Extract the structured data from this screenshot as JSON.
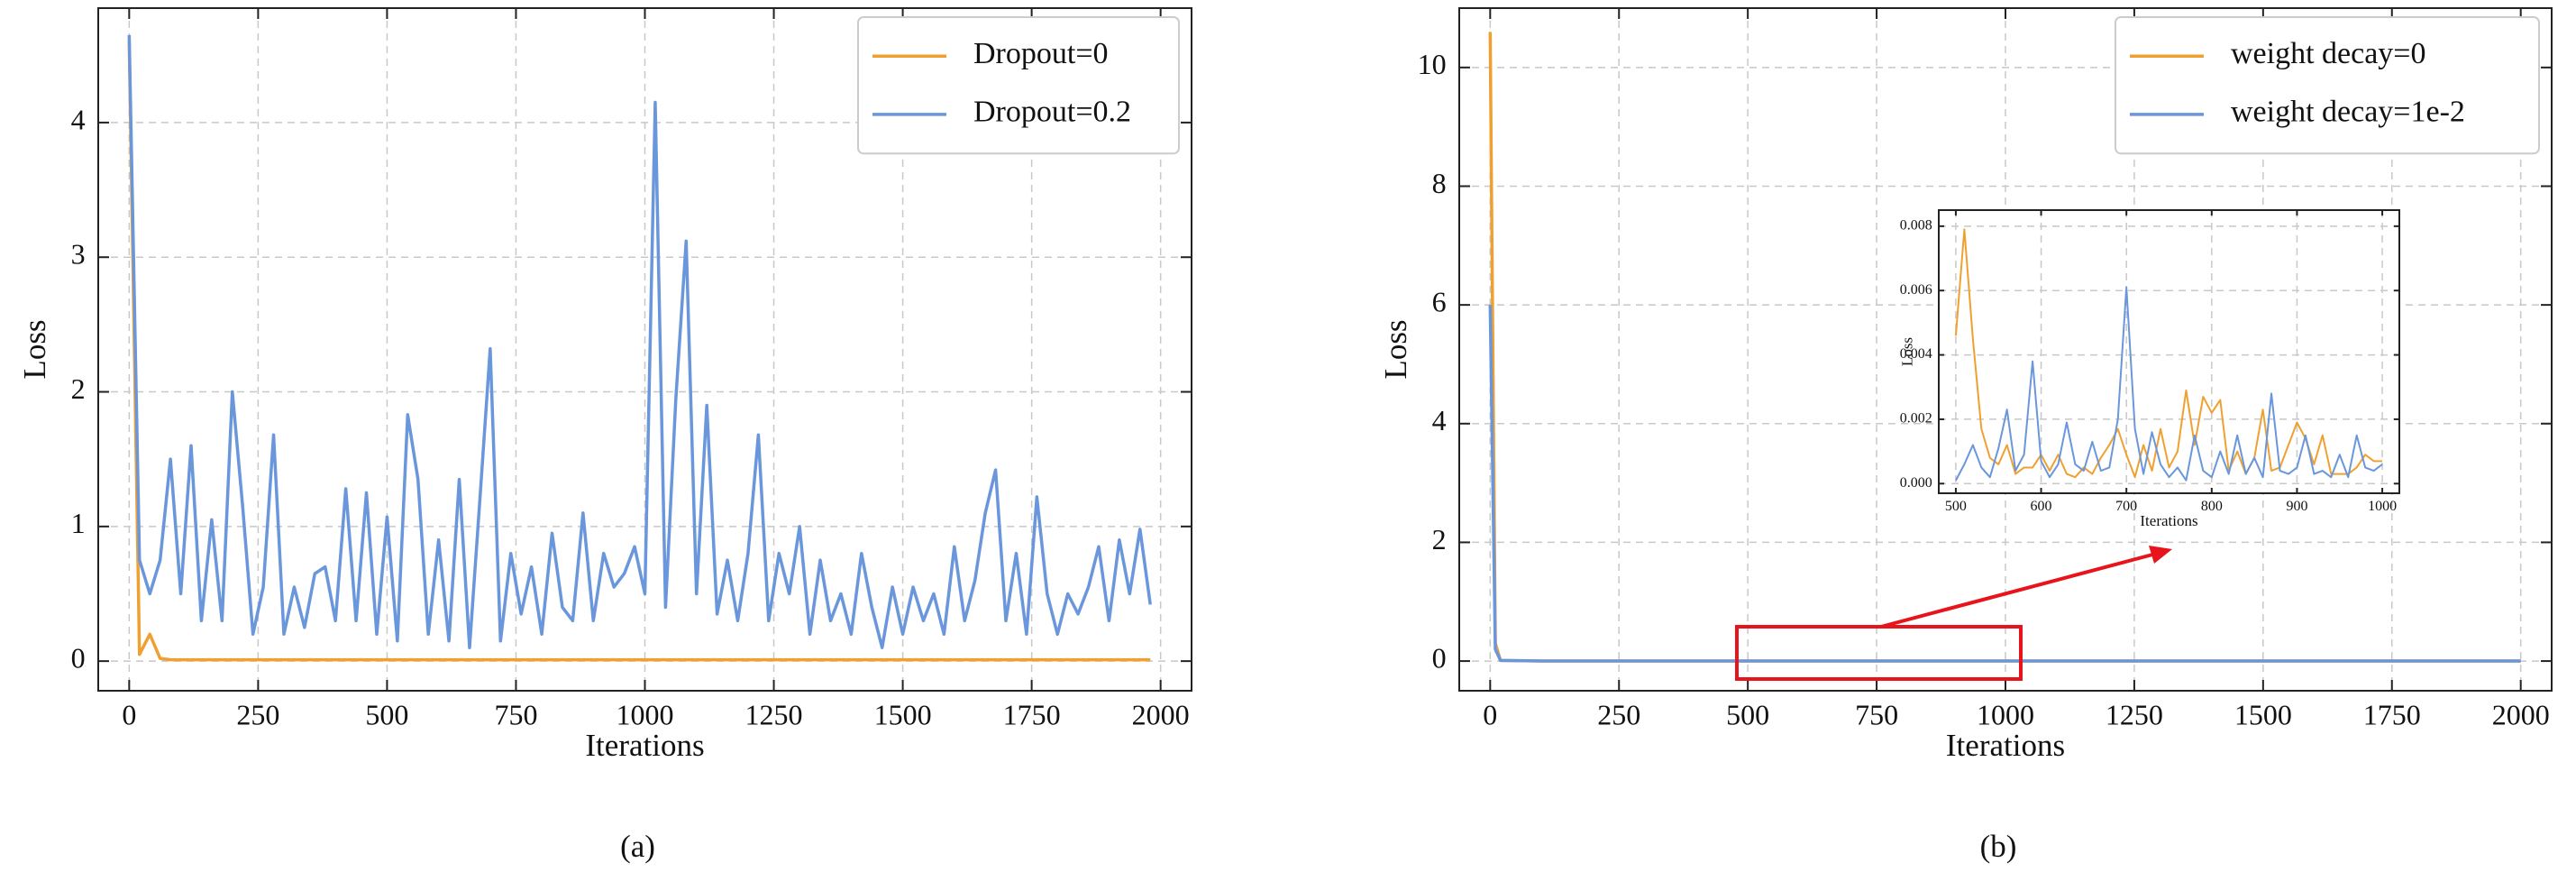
{
  "chart_data": [
    {
      "type": "line",
      "xlabel": "Iterations",
      "ylabel": "Loss",
      "caption": "(a)",
      "xlim": [
        -60,
        2060
      ],
      "ylim": [
        -0.22,
        4.85
      ],
      "xticks": [
        0,
        250,
        500,
        750,
        1000,
        1250,
        1500,
        1750,
        2000
      ],
      "yticks": [
        0,
        1,
        2,
        3,
        4
      ],
      "grid": true,
      "legend": "upper right",
      "x": [
        0,
        20,
        40,
        60,
        80,
        100,
        120,
        140,
        160,
        180,
        200,
        220,
        240,
        260,
        280,
        300,
        320,
        340,
        360,
        380,
        400,
        420,
        440,
        460,
        480,
        500,
        520,
        540,
        560,
        580,
        600,
        620,
        640,
        660,
        680,
        700,
        720,
        740,
        760,
        780,
        800,
        820,
        840,
        860,
        880,
        900,
        920,
        940,
        960,
        980,
        1000,
        1020,
        1040,
        1060,
        1080,
        1100,
        1120,
        1140,
        1160,
        1180,
        1200,
        1220,
        1240,
        1260,
        1280,
        1300,
        1320,
        1340,
        1360,
        1380,
        1400,
        1420,
        1440,
        1460,
        1480,
        1500,
        1520,
        1540,
        1560,
        1580,
        1600,
        1620,
        1640,
        1660,
        1680,
        1700,
        1720,
        1740,
        1760,
        1780,
        1800,
        1820,
        1840,
        1860,
        1880,
        1900,
        1920,
        1940,
        1960,
        1980
      ],
      "series": [
        {
          "name": "Dropout=0",
          "color": "#f0a030",
          "values": [
            4.6,
            0.05,
            0.2,
            0.02,
            0.01,
            0.01,
            0.01,
            0.01,
            0.01,
            0.01,
            0.01,
            0.01,
            0.01,
            0.01,
            0.01,
            0.01,
            0.01,
            0.01,
            0.01,
            0.01,
            0.01,
            0.01,
            0.01,
            0.01,
            0.01,
            0.01,
            0.01,
            0.01,
            0.01,
            0.01,
            0.01,
            0.01,
            0.01,
            0.01,
            0.01,
            0.01,
            0.01,
            0.01,
            0.01,
            0.01,
            0.01,
            0.01,
            0.01,
            0.01,
            0.01,
            0.01,
            0.01,
            0.01,
            0.01,
            0.01,
            0.01,
            0.01,
            0.01,
            0.01,
            0.01,
            0.01,
            0.01,
            0.01,
            0.01,
            0.01,
            0.01,
            0.01,
            0.01,
            0.01,
            0.01,
            0.01,
            0.01,
            0.01,
            0.01,
            0.01,
            0.01,
            0.01,
            0.01,
            0.01,
            0.01,
            0.01,
            0.01,
            0.01,
            0.01,
            0.01,
            0.01,
            0.01,
            0.01,
            0.01,
            0.01,
            0.01,
            0.01,
            0.01,
            0.01,
            0.01,
            0.01,
            0.01,
            0.01,
            0.01,
            0.01,
            0.01,
            0.01,
            0.01,
            0.01,
            0.01
          ]
        },
        {
          "name": "Dropout=0.2",
          "color": "#6a96dc",
          "values": [
            4.65,
            0.75,
            0.5,
            0.75,
            1.5,
            0.5,
            1.6,
            0.3,
            1.05,
            0.3,
            2.0,
            1.15,
            0.2,
            0.55,
            1.68,
            0.2,
            0.55,
            0.25,
            0.65,
            0.7,
            0.3,
            1.28,
            0.3,
            1.25,
            0.2,
            1.07,
            0.15,
            1.83,
            1.35,
            0.2,
            0.9,
            0.15,
            1.35,
            0.1,
            1.2,
            2.32,
            0.15,
            0.8,
            0.35,
            0.7,
            0.2,
            0.95,
            0.4,
            0.3,
            1.1,
            0.3,
            0.8,
            0.55,
            0.65,
            0.85,
            0.5,
            4.15,
            0.4,
            1.95,
            3.12,
            0.5,
            1.9,
            0.35,
            0.75,
            0.3,
            0.8,
            1.68,
            0.3,
            0.8,
            0.5,
            1.0,
            0.2,
            0.75,
            0.3,
            0.5,
            0.2,
            0.8,
            0.4,
            0.1,
            0.55,
            0.2,
            0.55,
            0.3,
            0.5,
            0.2,
            0.85,
            0.3,
            0.6,
            1.1,
            1.42,
            0.3,
            0.8,
            0.2,
            1.22,
            0.5,
            0.2,
            0.5,
            0.35,
            0.55,
            0.85,
            0.3,
            0.9,
            0.5,
            0.98,
            0.42
          ]
        }
      ]
    },
    {
      "type": "line",
      "xlabel": "Iterations",
      "ylabel": "Loss",
      "caption": "(b)",
      "xlim": [
        -60,
        2060
      ],
      "ylim": [
        -0.5,
        11.0
      ],
      "xticks": [
        0,
        250,
        500,
        750,
        1000,
        1250,
        1500,
        1750,
        2000
      ],
      "yticks": [
        0,
        2,
        4,
        6,
        8,
        10
      ],
      "grid": true,
      "legend": "upper right",
      "x": [
        0,
        10,
        20,
        100,
        200,
        300,
        400,
        500,
        600,
        700,
        800,
        900,
        1000,
        1100,
        1200,
        1300,
        1400,
        1500,
        1600,
        1700,
        1800,
        1900,
        2000
      ],
      "series": [
        {
          "name": "weight decay=0",
          "color": "#f0a030",
          "values": [
            10.6,
            0.3,
            0.01,
            0.002,
            0.002,
            0.002,
            0.002,
            0.002,
            0.002,
            0.002,
            0.002,
            0.002,
            0.002,
            0.002,
            0.002,
            0.002,
            0.002,
            0.002,
            0.002,
            0.002,
            0.002,
            0.002,
            0.002
          ]
        },
        {
          "name": "weight decay=1e-2",
          "color": "#6a96dc",
          "values": [
            6.0,
            0.2,
            0.01,
            0.002,
            0.002,
            0.002,
            0.002,
            0.002,
            0.002,
            0.002,
            0.002,
            0.002,
            0.002,
            0.002,
            0.002,
            0.002,
            0.002,
            0.002,
            0.002,
            0.002,
            0.002,
            0.002,
            0.002
          ]
        }
      ]
    },
    {
      "type": "line",
      "xlabel": "Iterations",
      "ylabel": "Loss",
      "xlim": [
        480,
        1020
      ],
      "ylim": [
        -0.0003,
        0.0085
      ],
      "xticks": [
        500,
        600,
        700,
        800,
        900,
        1000
      ],
      "yticks": [
        {
          "value": 0,
          "label": "0.000"
        },
        {
          "value": 0.002,
          "label": "0.002"
        },
        {
          "value": 0.004,
          "label": "0.004"
        },
        {
          "value": 0.006,
          "label": "0.006"
        },
        {
          "value": 0.008,
          "label": "0.008"
        }
      ],
      "grid": true,
      "x": [
        500,
        510,
        520,
        530,
        540,
        550,
        560,
        570,
        580,
        590,
        600,
        610,
        620,
        630,
        640,
        650,
        660,
        670,
        680,
        690,
        700,
        710,
        720,
        730,
        740,
        750,
        760,
        770,
        780,
        790,
        800,
        810,
        820,
        830,
        840,
        850,
        860,
        870,
        880,
        890,
        900,
        910,
        920,
        930,
        940,
        950,
        960,
        970,
        980,
        990,
        1000
      ],
      "series": [
        {
          "name": "weight decay=0",
          "color": "#f0a030",
          "values": [
            0.0046,
            0.0079,
            0.0045,
            0.0017,
            0.0008,
            0.0006,
            0.0012,
            0.0003,
            0.0005,
            0.0005,
            0.0009,
            0.0004,
            0.0009,
            0.0003,
            0.0002,
            0.0005,
            0.0003,
            0.0008,
            0.0012,
            0.0017,
            0.0009,
            0.0002,
            0.0012,
            0.0004,
            0.0017,
            0.0005,
            0.001,
            0.0029,
            0.0012,
            0.0027,
            0.0022,
            0.0026,
            0.0004,
            0.001,
            0.0003,
            0.0008,
            0.0023,
            0.0004,
            0.0005,
            0.0012,
            0.0019,
            0.0014,
            0.0006,
            0.0015,
            0.0003,
            0.0003,
            0.0003,
            0.0005,
            0.0009,
            0.0007,
            0.0007
          ]
        },
        {
          "name": "weight decay=1e-2",
          "color": "#6a96dc",
          "values": [
            0.0001,
            0.0006,
            0.0012,
            0.0005,
            0.0002,
            0.0011,
            0.0023,
            0.0004,
            0.0009,
            0.0038,
            0.0007,
            0.0002,
            0.0006,
            0.0019,
            0.0006,
            0.0004,
            0.0013,
            0.0004,
            0.0005,
            0.002,
            0.0061,
            0.0017,
            0.0003,
            0.0016,
            0.0006,
            0.0002,
            0.0005,
            0.0001,
            0.0015,
            0.0004,
            0.0002,
            0.001,
            0.0003,
            0.0015,
            0.0003,
            0.0008,
            0.0002,
            0.0028,
            0.0004,
            0.0003,
            0.0005,
            0.0015,
            0.0003,
            0.0004,
            0.0002,
            0.0009,
            0.0002,
            0.0015,
            0.0005,
            0.0004,
            0.0006
          ]
        }
      ]
    }
  ]
}
